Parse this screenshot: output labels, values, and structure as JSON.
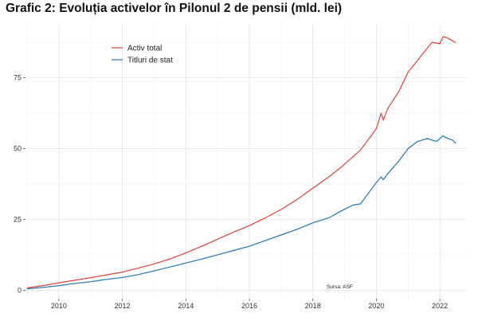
{
  "chart_data": {
    "type": "line",
    "title": "Grafic 2: Evoluția activelor în Pilonul 2 de pensii (mld. lei)",
    "xlabel": "",
    "ylabel": "",
    "xlim": [
      2008.95,
      2022.85
    ],
    "ylim": [
      -3,
      94
    ],
    "x_ticks": [
      2010,
      2012,
      2014,
      2016,
      2018,
      2020,
      2022
    ],
    "y_ticks": [
      0,
      25,
      50,
      75
    ],
    "grid": true,
    "legend_position": "top-left",
    "source_note": "Sursa: ASF",
    "series": [
      {
        "name": "Activ total",
        "color": "#e0413a",
        "points": [
          [
            2009.0,
            0.8
          ],
          [
            2009.5,
            1.6
          ],
          [
            2010.0,
            2.6
          ],
          [
            2010.5,
            3.5
          ],
          [
            2011.0,
            4.4
          ],
          [
            2011.5,
            5.4
          ],
          [
            2012.0,
            6.4
          ],
          [
            2012.5,
            7.8
          ],
          [
            2013.0,
            9.3
          ],
          [
            2013.5,
            11.0
          ],
          [
            2014.0,
            13.2
          ],
          [
            2014.5,
            15.5
          ],
          [
            2015.0,
            18.0
          ],
          [
            2015.5,
            20.5
          ],
          [
            2016.0,
            22.8
          ],
          [
            2016.5,
            25.5
          ],
          [
            2017.0,
            28.5
          ],
          [
            2017.5,
            32.0
          ],
          [
            2018.0,
            36.0
          ],
          [
            2018.5,
            40.0
          ],
          [
            2018.9,
            43.5
          ],
          [
            2019.25,
            47.0
          ],
          [
            2019.5,
            49.5
          ],
          [
            2020.0,
            57.0
          ],
          [
            2020.15,
            62.5
          ],
          [
            2020.22,
            60.0
          ],
          [
            2020.35,
            64.0
          ],
          [
            2020.7,
            70.0
          ],
          [
            2021.0,
            77.0
          ],
          [
            2021.5,
            84.0
          ],
          [
            2021.75,
            87.5
          ],
          [
            2022.0,
            87.0
          ],
          [
            2022.1,
            89.5
          ],
          [
            2022.25,
            89.0
          ],
          [
            2022.4,
            88.0
          ],
          [
            2022.5,
            87.3
          ]
        ]
      },
      {
        "name": "Titluri de stat",
        "color": "#1f77b4",
        "points": [
          [
            2009.0,
            0.5
          ],
          [
            2009.5,
            1.0
          ],
          [
            2010.0,
            1.6
          ],
          [
            2010.5,
            2.4
          ],
          [
            2011.0,
            3.0
          ],
          [
            2011.5,
            3.8
          ],
          [
            2012.0,
            4.5
          ],
          [
            2012.5,
            5.5
          ],
          [
            2013.0,
            6.8
          ],
          [
            2013.5,
            8.2
          ],
          [
            2014.0,
            9.6
          ],
          [
            2014.5,
            11.0
          ],
          [
            2015.0,
            12.5
          ],
          [
            2015.5,
            14.0
          ],
          [
            2016.0,
            15.5
          ],
          [
            2016.5,
            17.5
          ],
          [
            2017.0,
            19.5
          ],
          [
            2017.5,
            21.5
          ],
          [
            2018.0,
            23.8
          ],
          [
            2018.5,
            25.5
          ],
          [
            2018.9,
            28.0
          ],
          [
            2019.25,
            30.0
          ],
          [
            2019.5,
            30.5
          ],
          [
            2020.0,
            38.0
          ],
          [
            2020.15,
            40.0
          ],
          [
            2020.22,
            39.0
          ],
          [
            2020.35,
            41.0
          ],
          [
            2020.7,
            45.5
          ],
          [
            2021.0,
            50.0
          ],
          [
            2021.3,
            52.5
          ],
          [
            2021.6,
            53.5
          ],
          [
            2021.9,
            52.5
          ],
          [
            2022.1,
            54.5
          ],
          [
            2022.25,
            53.5
          ],
          [
            2022.4,
            53.0
          ],
          [
            2022.5,
            51.8
          ]
        ]
      }
    ]
  }
}
